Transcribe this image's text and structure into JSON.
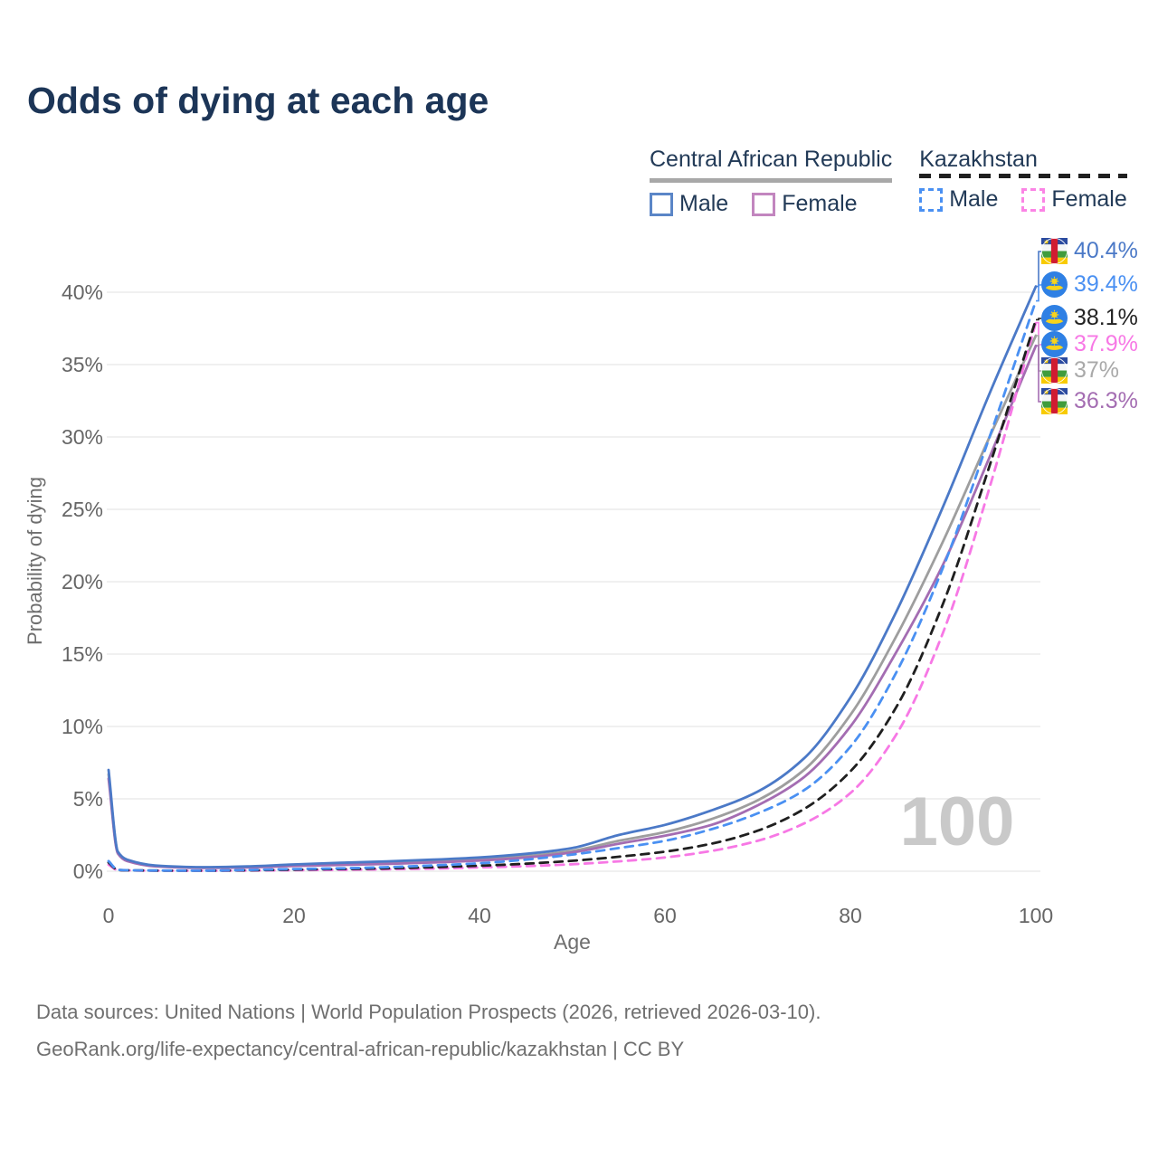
{
  "title": "Odds of dying at each age",
  "legend": {
    "groups": [
      {
        "title": "Central African Republic",
        "underline": "solid",
        "underline_color": "#a8a8a8",
        "items": [
          {
            "label": "Male",
            "color": "#5b86c7",
            "dashed": false
          },
          {
            "label": "Female",
            "color": "#c286bf",
            "dashed": false
          }
        ]
      },
      {
        "title": "Kazakhstan",
        "underline": "dashed",
        "underline_color": "#1f1f1f",
        "items": [
          {
            "label": "Male",
            "color": "#4a90f2",
            "dashed": true
          },
          {
            "label": "Female",
            "color": "#fb84e5",
            "dashed": true
          }
        ]
      }
    ]
  },
  "chart_data": {
    "type": "line",
    "title": "Odds of dying at each age",
    "xlabel": "Age",
    "ylabel": "Probability of dying",
    "xlim": [
      0,
      100
    ],
    "ylim": [
      0,
      42
    ],
    "x_ticks": [
      0,
      20,
      40,
      60,
      80,
      100
    ],
    "y_ticks": [
      0,
      5,
      10,
      15,
      20,
      25,
      30,
      35,
      40
    ],
    "y_tick_suffix": "%",
    "grid": "horizontal",
    "legend_position": "top-right",
    "watermark": "100",
    "ages": [
      0,
      1,
      2,
      5,
      10,
      15,
      20,
      25,
      30,
      35,
      40,
      45,
      50,
      55,
      60,
      65,
      70,
      75,
      80,
      85,
      90,
      95,
      100
    ],
    "series": [
      {
        "name": "Central African Republic — Both sexes",
        "color": "#9e9e9e",
        "dashed": false,
        "values": [
          6.7,
          1.28,
          0.75,
          0.37,
          0.25,
          0.29,
          0.41,
          0.5,
          0.58,
          0.69,
          0.84,
          1.05,
          1.4,
          2.1,
          2.7,
          3.6,
          4.9,
          7.0,
          10.8,
          16.3,
          22.8,
          30.0,
          37.0
        ],
        "end_label": "37%"
      },
      {
        "name": "Central African Republic — Female",
        "color": "#a46db2",
        "dashed": false,
        "values": [
          6.4,
          1.22,
          0.7,
          0.34,
          0.23,
          0.26,
          0.36,
          0.43,
          0.5,
          0.6,
          0.74,
          0.95,
          1.3,
          1.9,
          2.45,
          3.2,
          4.55,
          6.5,
          10.0,
          15.2,
          21.2,
          28.6,
          36.3
        ],
        "end_label": "36.3%"
      },
      {
        "name": "Central African Republic — Male",
        "color": "#4b79c7",
        "dashed": false,
        "values": [
          7.0,
          1.35,
          0.8,
          0.4,
          0.28,
          0.33,
          0.47,
          0.58,
          0.68,
          0.8,
          0.95,
          1.2,
          1.6,
          2.5,
          3.2,
          4.2,
          5.5,
          7.8,
          12.0,
          18.0,
          25.2,
          33.0,
          40.4
        ],
        "end_label": "40.4%"
      },
      {
        "name": "Kazakhstan — Female",
        "color": "#f778e5",
        "dashed": true,
        "values": [
          0.45,
          0.08,
          0.055,
          0.04,
          0.03,
          0.045,
          0.07,
          0.095,
          0.13,
          0.18,
          0.26,
          0.35,
          0.48,
          0.68,
          0.95,
          1.4,
          2.1,
          3.3,
          5.4,
          9.5,
          16.5,
          26.5,
          37.9
        ],
        "end_label": "37.9%"
      },
      {
        "name": "Kazakhstan — Both sexes",
        "color": "#1f1f1f",
        "dashed": true,
        "values": [
          0.6,
          0.09,
          0.06,
          0.045,
          0.035,
          0.065,
          0.11,
          0.15,
          0.2,
          0.28,
          0.38,
          0.52,
          0.72,
          1.0,
          1.35,
          1.9,
          2.8,
          4.3,
          6.9,
          11.4,
          18.5,
          28.0,
          38.1
        ],
        "end_label": "38.1%"
      },
      {
        "name": "Kazakhstan — Male",
        "color": "#4a90f2",
        "dashed": true,
        "values": [
          0.7,
          0.1,
          0.07,
          0.05,
          0.04,
          0.09,
          0.15,
          0.2,
          0.28,
          0.4,
          0.55,
          0.8,
          1.15,
          1.6,
          2.1,
          2.9,
          4.0,
          5.6,
          8.6,
          13.8,
          21.0,
          30.0,
          39.4
        ],
        "end_label": "39.4%"
      }
    ],
    "end_labels": [
      {
        "flag": "central-african-republic",
        "value": "40.4%",
        "numeric": 40.4,
        "color": "#4b79c7"
      },
      {
        "flag": "kazakhstan",
        "value": "39.4%",
        "numeric": 39.4,
        "color": "#4a90f2"
      },
      {
        "flag": "kazakhstan",
        "value": "38.1%",
        "numeric": 38.1,
        "color": "#222222"
      },
      {
        "flag": "kazakhstan",
        "value": "37.9%",
        "numeric": 37.9,
        "color": "#f778e5"
      },
      {
        "flag": "central-african-republic",
        "value": "37%",
        "numeric": 37.0,
        "color": "#a9a9a9"
      },
      {
        "flag": "central-african-republic",
        "value": "36.3%",
        "numeric": 36.3,
        "color": "#a46db2"
      }
    ]
  },
  "footer": {
    "line1": "Data sources: United Nations | World Population Prospects (2026, retrieved 2026-03-10).",
    "line2": "GeoRank.org/life-expectancy/central-african-republic/kazakhstan | CC BY"
  },
  "colors": {
    "title_text": "#1c3557",
    "axis_text": "#666666",
    "gridline": "#ececec",
    "watermark": "#c9c9c9",
    "footer_text": "#6f6f6f"
  }
}
